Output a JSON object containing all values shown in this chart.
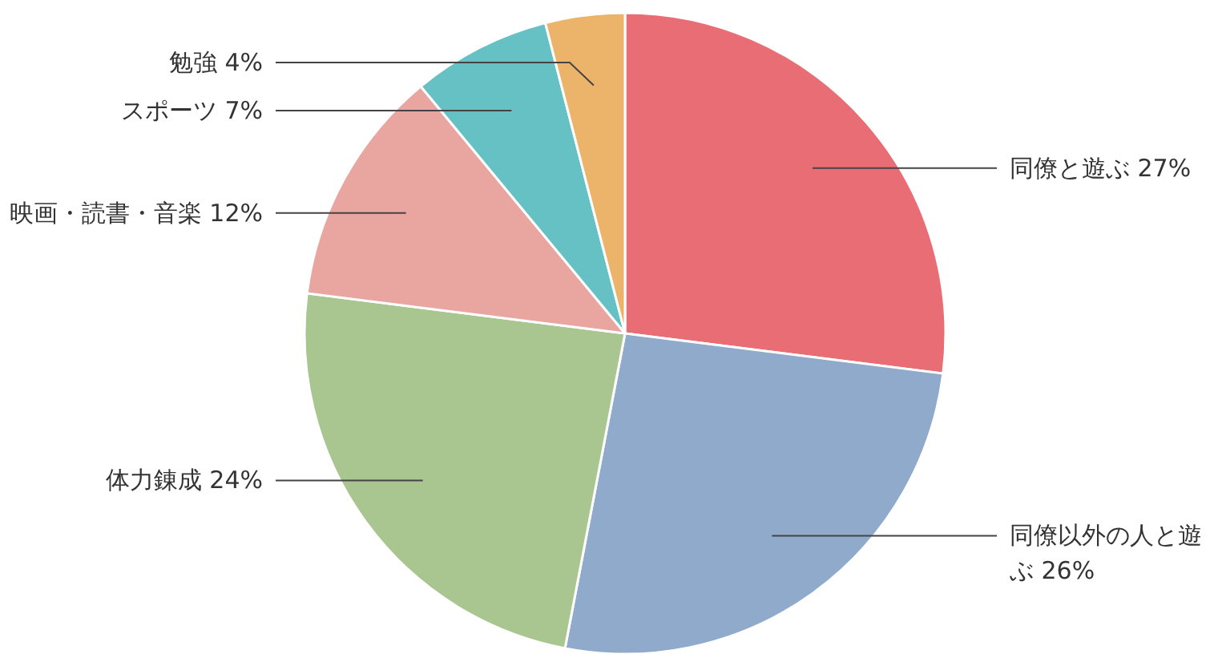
{
  "chart_data": {
    "type": "pie",
    "categories": [
      "同僚と遊ぶ",
      "同僚以外の人と遊ぶ",
      "体力錬成",
      "映画・読書・音楽",
      "スポーツ",
      "勉強"
    ],
    "values": [
      27,
      26,
      24,
      12,
      7,
      4
    ],
    "value_labels": [
      "27%",
      "26%",
      "24%",
      "12%",
      "7%",
      "4%"
    ],
    "colors": [
      "#e96d75",
      "#8faacb",
      "#a9c590",
      "#e9a59f",
      "#65c1c4",
      "#ecb46a"
    ],
    "legend": false
  }
}
